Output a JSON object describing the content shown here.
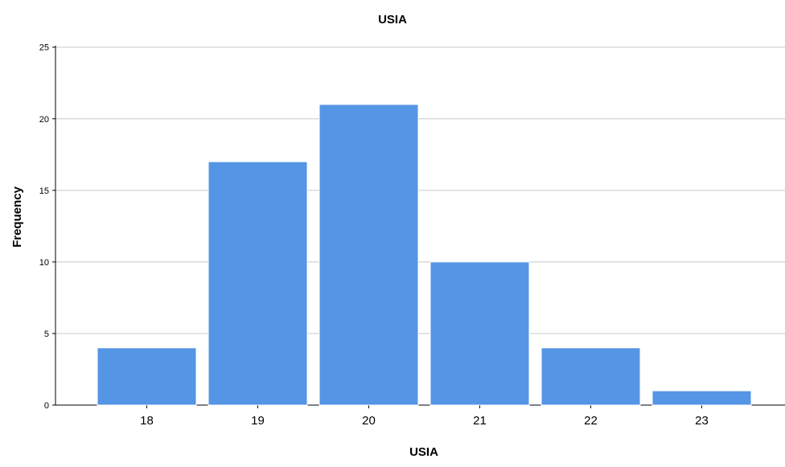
{
  "chart_data": {
    "type": "bar",
    "title": "USIA",
    "xlabel": "USIA",
    "ylabel": "Frequency",
    "categories": [
      "18",
      "19",
      "20",
      "21",
      "22",
      "23"
    ],
    "values": [
      4,
      17,
      21,
      10,
      4,
      1
    ],
    "ylim": [
      0,
      25
    ],
    "yticks": [
      "0",
      "5",
      "10",
      "15",
      "20",
      "25"
    ],
    "grid": true,
    "bar_color": "#5495e5",
    "bar_edge_color": "#ffffff",
    "grid_color": "#d0d0d0",
    "axis_color": "#000000"
  }
}
